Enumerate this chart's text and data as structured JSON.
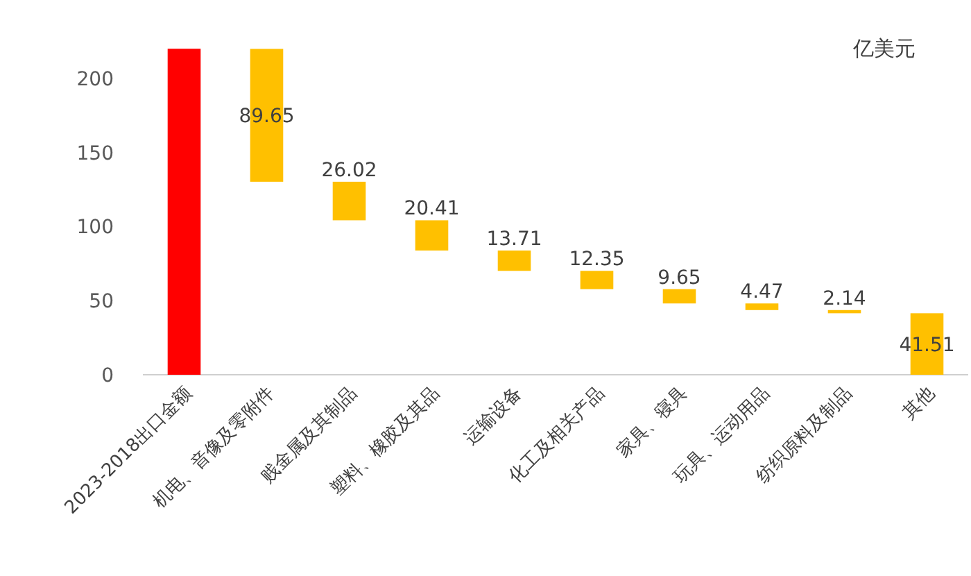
{
  "chart_data": {
    "type": "bar",
    "categories": [
      "2023-2018出口金额",
      "机电、音像及零附件",
      "贱金属及其制品",
      "塑料、橡胶及其品",
      "运输设备",
      "化工及相关产品",
      "家具、寝具",
      "玩具、运动用品",
      "纺织原料及制品",
      "其他"
    ],
    "values": [
      220,
      89.65,
      26.02,
      20.41,
      13.71,
      12.35,
      9.65,
      4.47,
      2.14,
      41.51
    ],
    "base": [
      0,
      130.26,
      104.24,
      83.83,
      70.12,
      57.77,
      48.12,
      43.65,
      41.51,
      0
    ],
    "colors": [
      "#ff0000",
      "#ffc000",
      "#ffc000",
      "#ffc000",
      "#ffc000",
      "#ffc000",
      "#ffc000",
      "#ffc000",
      "#ffc000",
      "#ffc000"
    ],
    "value_labels": [
      null,
      "89.65",
      "26.02",
      "20.41",
      "13.71",
      "12.35",
      "9.65",
      "4.47",
      "2.14",
      "41.51"
    ],
    "ylim": [
      0,
      222
    ],
    "yticks": [
      0,
      50,
      100,
      150,
      200
    ],
    "annotations": [
      "亿美元"
    ],
    "grid": false
  }
}
